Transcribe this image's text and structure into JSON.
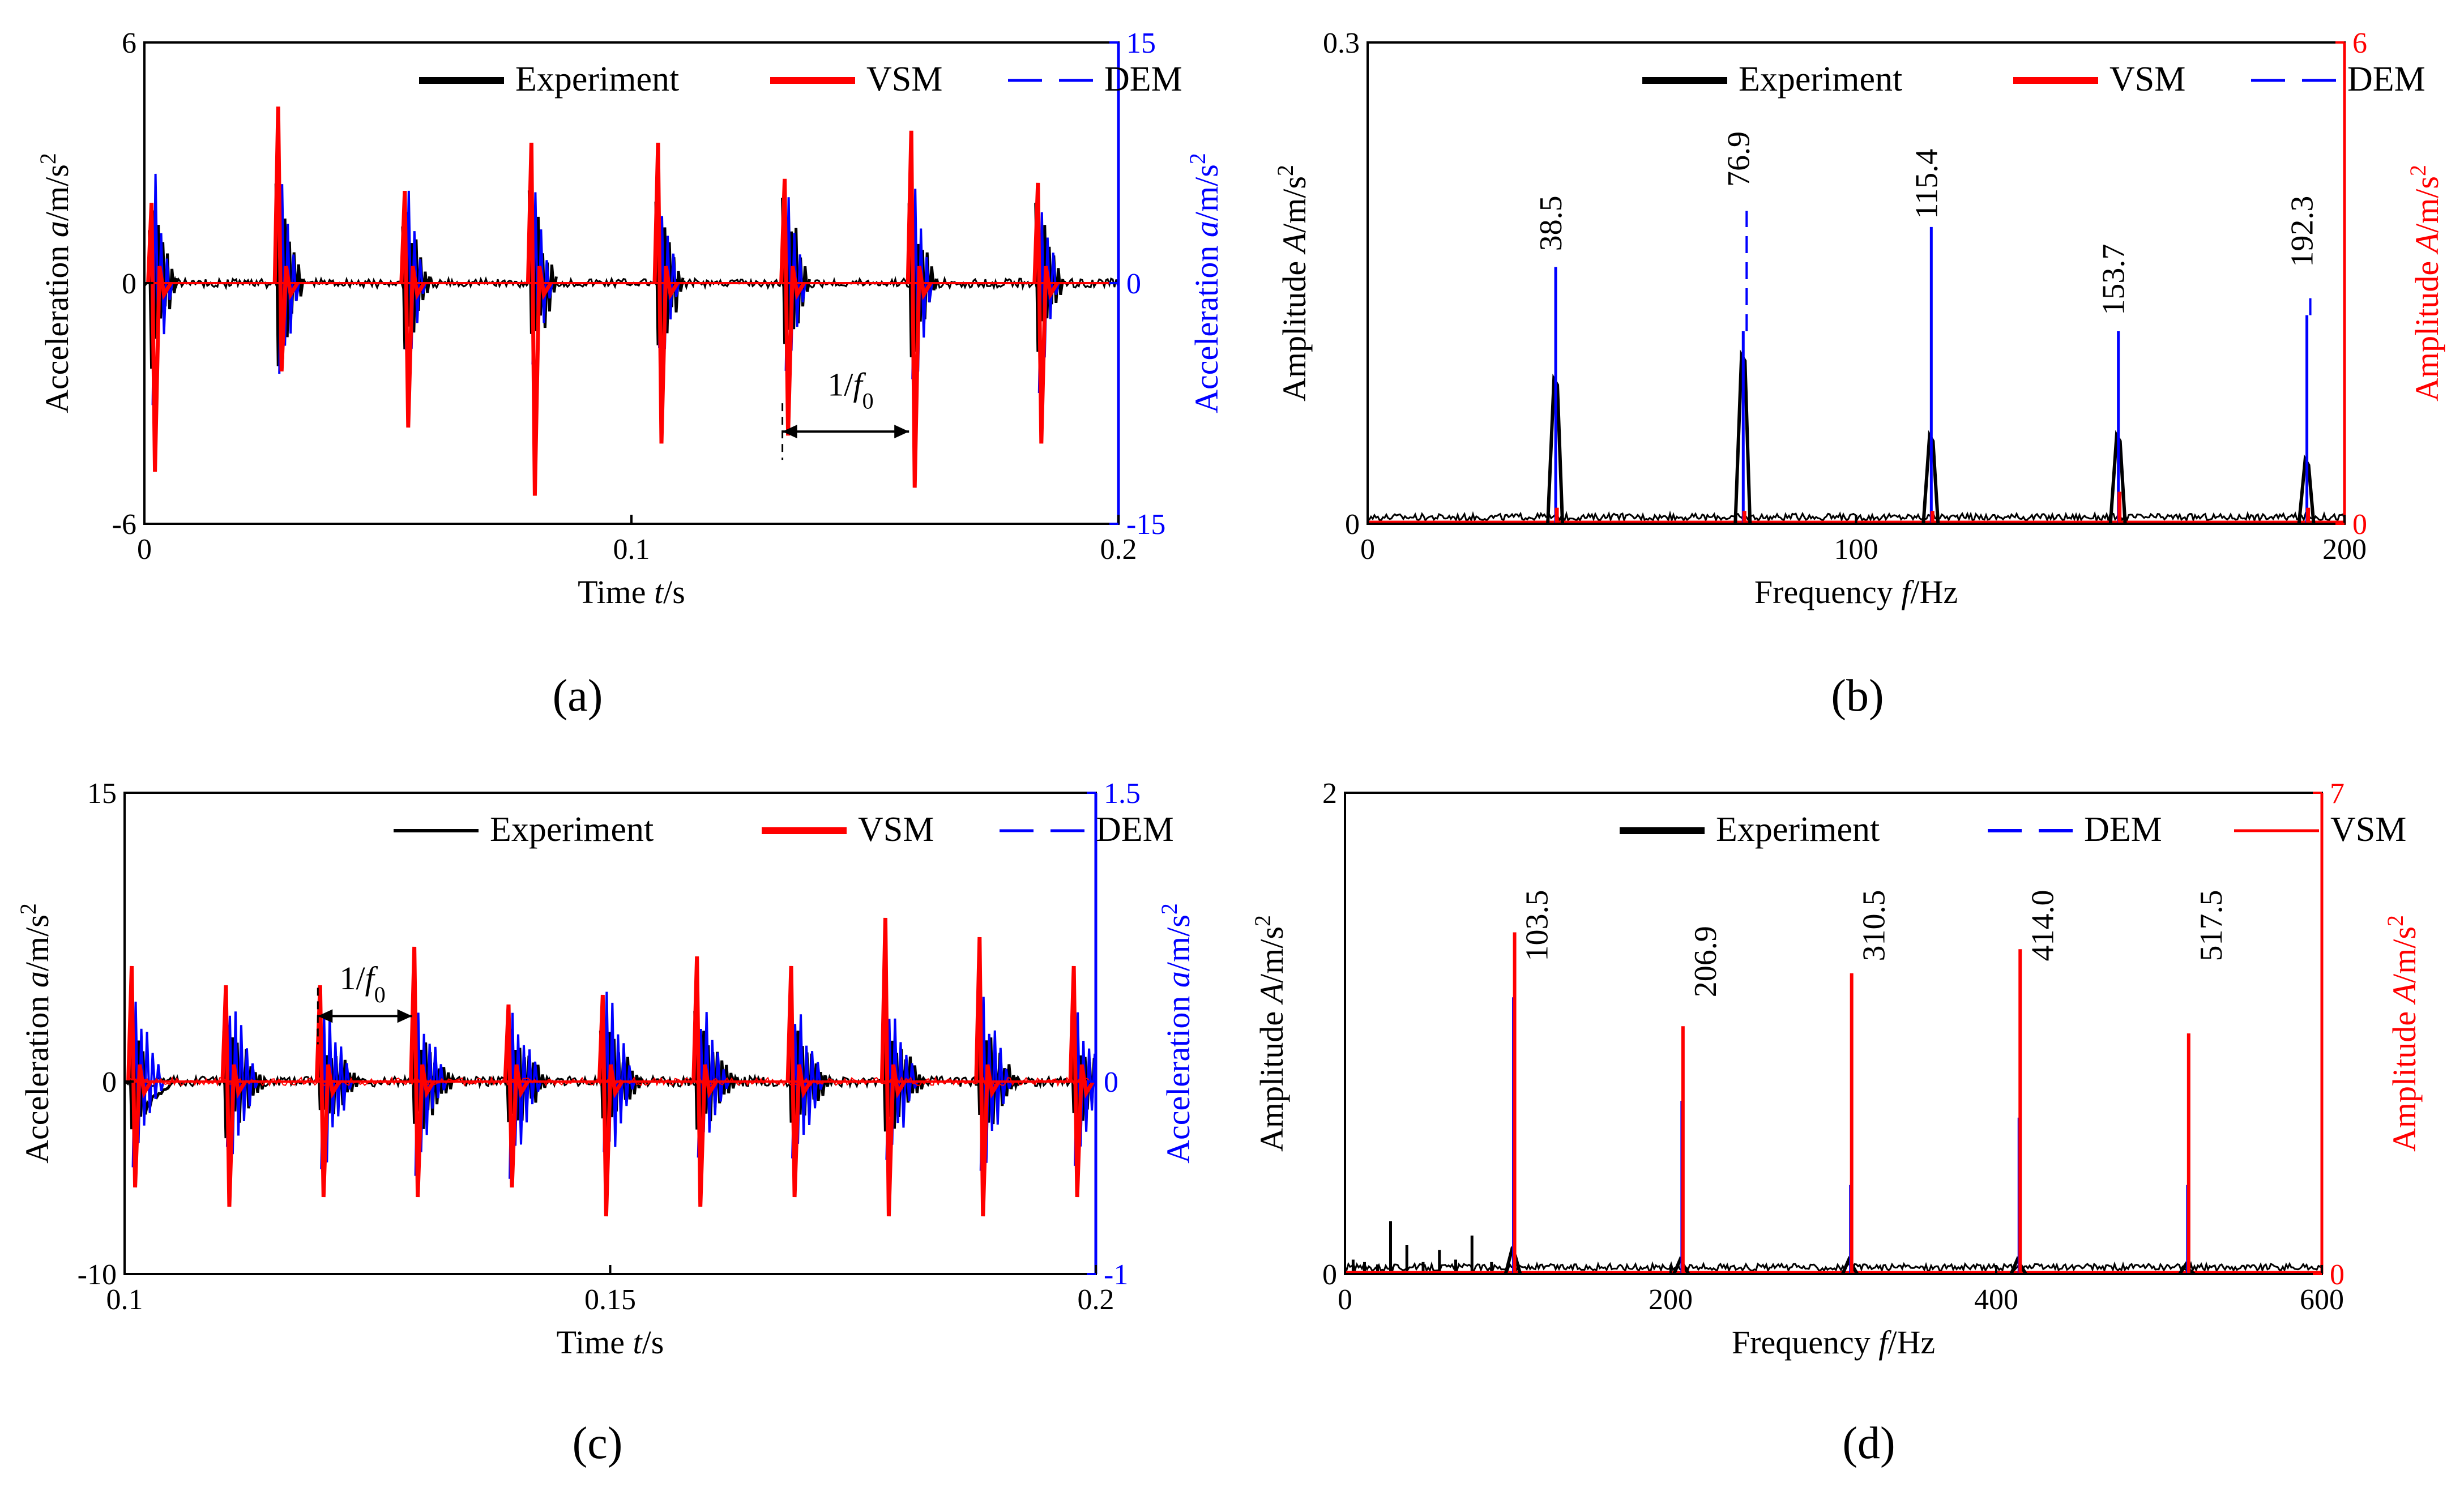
{
  "figure": {
    "panels": [
      {
        "id": "a",
        "caption": "(a)",
        "chart_data": {
          "type": "line",
          "xlabel_prefix": "Time ",
          "xlabel_var": "t",
          "xlabel_unit": "/s",
          "xlim": [
            0,
            0.2
          ],
          "xticks": [
            "0",
            "0.1",
            "0.2"
          ],
          "ylabel_prefix": "Acceleration  ",
          "ylabel_var": "a",
          "ylabel_unit": "/m/s",
          "ylabel_sup": "2",
          "ylim": [
            -6,
            6
          ],
          "yticks": [
            "-6",
            "0",
            "6"
          ],
          "y2label_prefix": "Acceleration  ",
          "y2label_var": "a",
          "y2label_unit": "/m/s",
          "y2label_sup": "2",
          "y2lim": [
            -15,
            15
          ],
          "y2ticks": [
            "-15",
            "0",
            "15"
          ],
          "y2_color": "#0000ff",
          "legend": [
            {
              "name": "Experiment",
              "color": "#000000",
              "dash": false,
              "width": 12
            },
            {
              "name": "VSM",
              "color": "#ff0000",
              "dash": false,
              "width": 12
            },
            {
              "name": "DEM",
              "color": "#0000ff",
              "dash": true,
              "width": 5
            }
          ],
          "impacts": {
            "x": [
              0.001,
              0.027,
              0.053,
              0.079,
              0.105,
              0.131,
              0.157,
              0.183
            ],
            "experiment_peak": [
              2.5,
              2.6,
              2.4,
              2.6,
              2.5,
              2.6,
              2.3,
              2.2
            ],
            "vsm_max": [
              2.0,
              4.4,
              2.3,
              3.5,
              3.5,
              2.6,
              3.8,
              2.5
            ],
            "vsm_min": [
              -4.7,
              -2.2,
              -3.6,
              -5.3,
              -4.0,
              -3.8,
              -5.1,
              -4.0
            ],
            "dem_peak": [
              9.5,
              10.0,
              8.0,
              8.0,
              7.5,
              10.0,
              9.5,
              9.0
            ]
          },
          "annotations": [
            {
              "text": "1/f",
              "sub": "0",
              "x": 0.145,
              "y": -2.8,
              "arrow_from": 0.131,
              "arrow_to": 0.157,
              "arrow_y": -3.7
            }
          ]
        }
      },
      {
        "id": "b",
        "caption": "(b)",
        "chart_data": {
          "type": "line",
          "xlabel_prefix": "Frequency ",
          "xlabel_var": "f",
          "xlabel_unit": "/Hz",
          "xlim": [
            0,
            200
          ],
          "xticks": [
            "0",
            "100",
            "200"
          ],
          "ylabel_prefix": "Amplitude ",
          "ylabel_var": "A",
          "ylabel_unit": "/m/s",
          "ylabel_sup": "2",
          "ylim": [
            0,
            0.3
          ],
          "yticks": [
            "0",
            "0.3"
          ],
          "y2label_prefix": "Amplitude ",
          "y2label_var": "A",
          "y2label_unit": "/m/s",
          "y2label_sup": "2",
          "y2lim": [
            0,
            6
          ],
          "y2ticks": [
            "0",
            "6"
          ],
          "y2_color": "#ff0000",
          "legend": [
            {
              "name": "Experiment",
              "color": "#000000",
              "dash": false,
              "width": 12
            },
            {
              "name": "VSM",
              "color": "#ff0000",
              "dash": false,
              "width": 12
            },
            {
              "name": "DEM",
              "color": "#0000ff",
              "dash": true,
              "width": 5
            }
          ],
          "peaks": {
            "x": [
              38.5,
              76.9,
              115.4,
              153.7,
              192.3
            ],
            "labels": [
              "38.5",
              "76.9",
              "115.4",
              "153.7",
              "192.3"
            ],
            "experiment": [
              0.09,
              0.105,
              0.055,
              0.055,
              0.04
            ],
            "vsm": [
              0.01,
              0.008,
              0.008,
              0.02,
              0.01
            ],
            "dem": [
              0.16,
              0.12,
              0.185,
              0.12,
              0.13
            ],
            "label_y": [
              0.17,
              0.21,
              0.19,
              0.13,
              0.16
            ]
          }
        }
      },
      {
        "id": "c",
        "caption": "(c)",
        "chart_data": {
          "type": "line",
          "xlabel_prefix": "Time ",
          "xlabel_var": "t",
          "xlabel_unit": "/s",
          "xlim": [
            0.1,
            0.2
          ],
          "xticks": [
            "0.1",
            "0.15",
            "0.2"
          ],
          "ylabel_prefix": "Acceleration  ",
          "ylabel_var": "a",
          "ylabel_unit": "/m/s",
          "ylabel_sup": "2",
          "ylim": [
            -10,
            15
          ],
          "yticks": [
            "-10",
            "0",
            "15"
          ],
          "y2label_prefix": "Acceleration  ",
          "y2label_var": "a",
          "y2label_unit": "/m/s",
          "y2label_sup": "2",
          "y2lim": [
            -1,
            1.5
          ],
          "y2ticks": [
            "-1",
            "0",
            "1.5"
          ],
          "y2_color": "#0000ff",
          "legend": [
            {
              "name": "Experiment",
              "color": "#000000",
              "dash": false,
              "width": 6
            },
            {
              "name": "VSM",
              "color": "#ff0000",
              "dash": false,
              "width": 12
            },
            {
              "name": "DEM",
              "color": "#0000ff",
              "dash": true,
              "width": 5
            }
          ],
          "impacts": {
            "x": [
              0.1005,
              0.1102,
              0.1199,
              0.1296,
              0.1393,
              0.149,
              0.1587,
              0.1684,
              0.1781,
              0.1878,
              0.1975
            ],
            "experiment_peak": [
              3.0,
              3.5,
              3.0,
              3.5,
              3.5,
              3.5,
              4.0,
              3.5,
              3.5,
              3.5,
              3.0
            ],
            "vsm_max": [
              6.0,
              5.0,
              5.0,
              7.0,
              4.0,
              4.5,
              6.5,
              6.0,
              8.5,
              7.5,
              6.0
            ],
            "vsm_min": [
              -5.5,
              -6.5,
              -6.0,
              -6.0,
              -5.5,
              -7.0,
              -6.5,
              -6.0,
              -7.0,
              -7.0,
              -6.0
            ],
            "dem_peak": [
              0.55,
              0.6,
              0.6,
              0.55,
              0.6,
              0.65,
              0.55,
              0.6,
              0.6,
              0.6,
              0.5
            ]
          },
          "annotations": [
            {
              "text": "1/f",
              "sub": "0",
              "x": 0.1245,
              "y": 4.8,
              "arrow_from": 0.1199,
              "arrow_to": 0.1296,
              "arrow_y": 3.4
            }
          ]
        }
      },
      {
        "id": "d",
        "caption": "(d)",
        "chart_data": {
          "type": "line",
          "xlabel_prefix": "Frequency ",
          "xlabel_var": "f",
          "xlabel_unit": "/Hz",
          "xlim": [
            0,
            600
          ],
          "xticks": [
            "0",
            "200",
            "400",
            "600"
          ],
          "ylabel_prefix": "Amplitude ",
          "ylabel_var": "A",
          "ylabel_unit": "/m/s",
          "ylabel_sup": "2",
          "ylim": [
            0,
            2
          ],
          "yticks": [
            "0",
            "2"
          ],
          "y2label_prefix": "Amplitude ",
          "y2label_var": "A",
          "y2label_unit": "/m/s",
          "y2label_sup": "2",
          "y2lim": [
            0,
            7
          ],
          "y2ticks": [
            "0",
            "7"
          ],
          "y2_color": "#ff0000",
          "legend": [
            {
              "name": "Experiment",
              "color": "#000000",
              "dash": false,
              "width": 12
            },
            {
              "name": "DEM",
              "color": "#0000ff",
              "dash": true,
              "width": 6
            },
            {
              "name": "VSM",
              "color": "#ff0000",
              "dash": false,
              "width": 5
            }
          ],
          "peaks": {
            "x": [
              103.5,
              206.9,
              310.5,
              414.0,
              517.5
            ],
            "labels": [
              "103.5",
              "206.9",
              "310.5",
              "414.0",
              "517.5"
            ],
            "experiment": [
              0.1,
              0.06,
              0.06,
              0.06,
              0.04
            ],
            "vsm": [
              1.42,
              1.03,
              1.25,
              1.35,
              1.0
            ],
            "dem": [
              1.15,
              0.72,
              0.37,
              0.65,
              0.37
            ],
            "label_y": [
              1.3,
              1.15,
              1.3,
              1.3,
              1.3
            ],
            "extra_experiment": {
              "x": [
                5,
                12,
                20,
                28,
                38,
                48,
                58,
                68,
                78,
                90
              ],
              "y": [
                0.06,
                0.05,
                0.04,
                0.22,
                0.12,
                0.05,
                0.1,
                0.06,
                0.16,
                0.05
              ]
            }
          }
        }
      }
    ]
  }
}
